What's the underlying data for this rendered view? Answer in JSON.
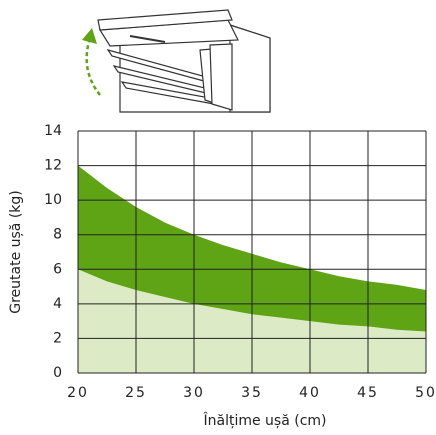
{
  "chart_data": {
    "type": "area",
    "x": [
      20,
      22.5,
      25,
      27.5,
      30,
      32.5,
      35,
      37.5,
      40,
      42.5,
      45,
      47.5,
      50
    ],
    "series": [
      {
        "color": "#dcebc6",
        "values": [
          6,
          5.3,
          4.8,
          4.4,
          4,
          3.7,
          3.4,
          3.2,
          3,
          2.8,
          2.7,
          2.5,
          2.4
        ]
      },
      {
        "color": "#5ea414",
        "values": [
          12,
          10.7,
          9.6,
          8.7,
          8,
          7.4,
          6.9,
          6.4,
          6,
          5.6,
          5.3,
          5.1,
          4.8
        ]
      }
    ],
    "xlabel": "Înălțime ușă (cm)",
    "ylabel": "Greutate ușă (kg)",
    "xlim": [
      20,
      50
    ],
    "xticks": [
      20,
      25,
      30,
      35,
      40,
      45,
      50
    ],
    "ylim": [
      0,
      14
    ],
    "yticks": [
      0,
      2,
      4,
      6,
      8,
      10,
      12,
      14
    ],
    "grid": true
  }
}
